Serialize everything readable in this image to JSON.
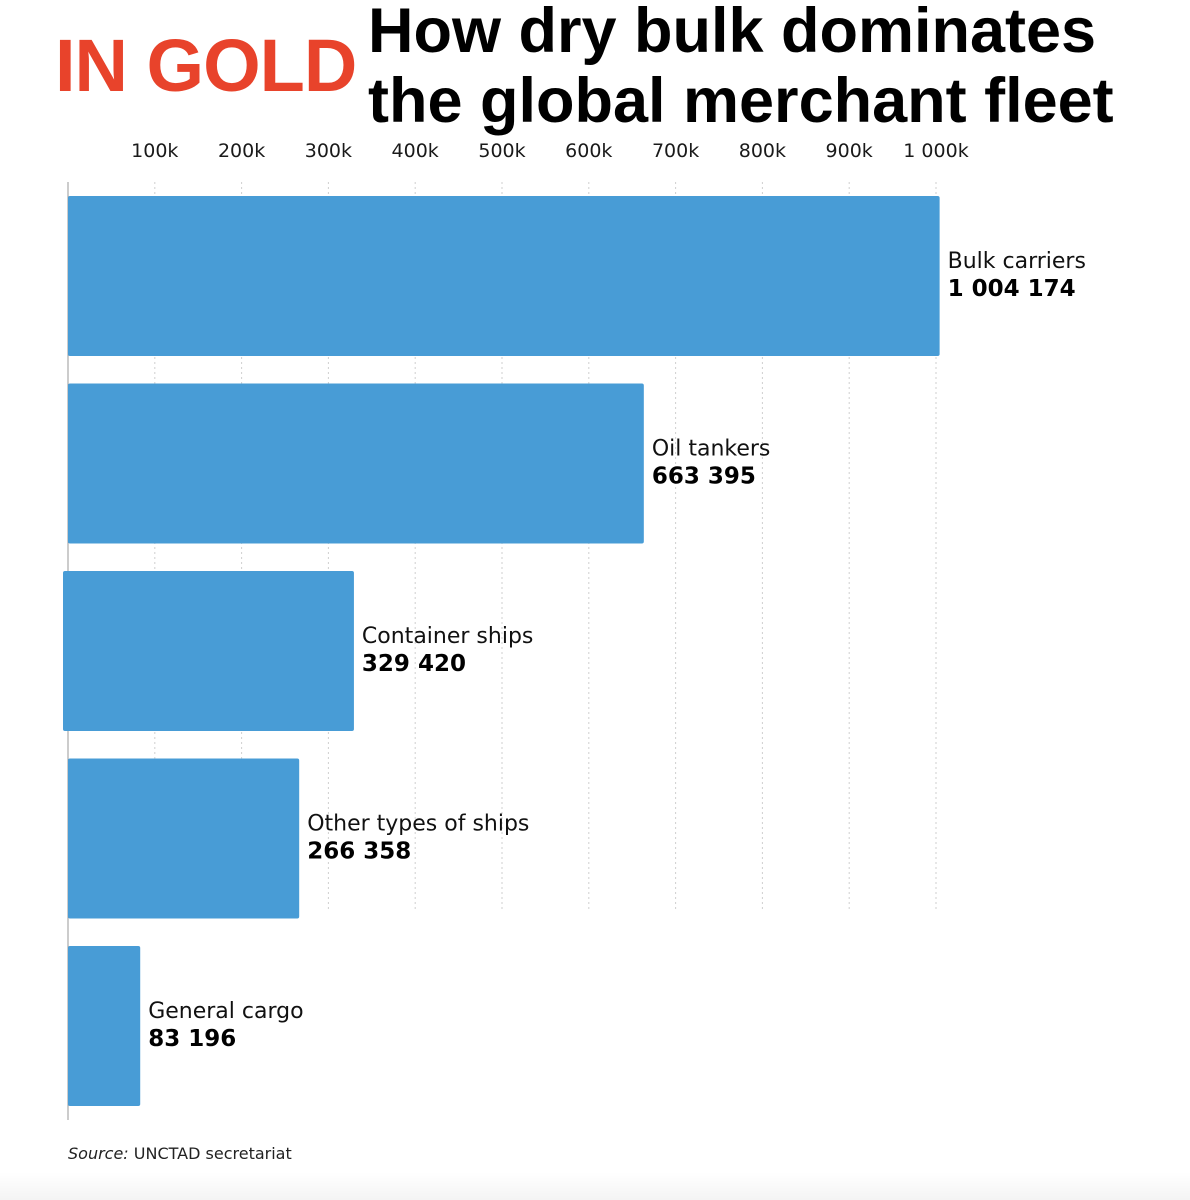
{
  "brand": {
    "text": "IN GOLD",
    "color": "#e8432b"
  },
  "headline": {
    "line1": "How dry bulk dominates",
    "line2": "the global merchant fleet"
  },
  "source": {
    "prefix": "Source:",
    "text": "UNCTAD secretariat"
  },
  "colors": {
    "bar": "#489cd6",
    "grid": "#cfcfcf",
    "axis": "#9a9a9a"
  },
  "chart_data": {
    "type": "bar",
    "orientation": "horizontal",
    "categories": [
      "Bulk carriers",
      "Oil tankers",
      "Container ships",
      "Other types of ships",
      "General cargo"
    ],
    "values": [
      1004174,
      663395,
      329420,
      266358,
      83196
    ],
    "value_labels": [
      "1 004 174",
      "663 395",
      "329 420",
      "266 358",
      "83 196"
    ],
    "xlim": [
      0,
      1000000
    ],
    "xticks": [
      100000,
      200000,
      300000,
      400000,
      500000,
      600000,
      700000,
      800000,
      900000,
      1000000
    ],
    "xtick_labels": [
      "100k",
      "200k",
      "300k",
      "400k",
      "500k",
      "600k",
      "700k",
      "800k",
      "900k",
      "1 000k"
    ],
    "axis_position": "top",
    "grid": true,
    "grid_style": "dotted vertical"
  }
}
